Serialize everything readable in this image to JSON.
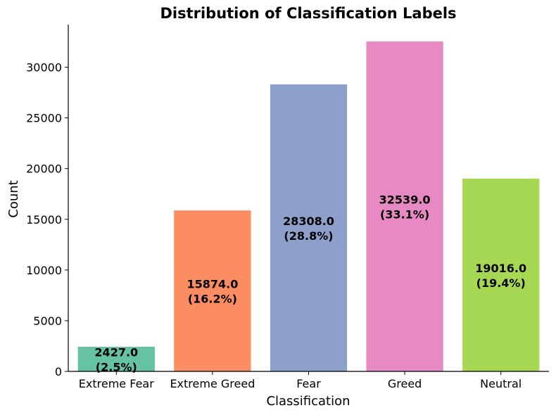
{
  "chart_data": {
    "type": "bar",
    "title": "Distribution of Classification Labels",
    "xlabel": "Classification",
    "ylabel": "Count",
    "categories": [
      "Extreme Fear",
      "Extreme Greed",
      "Fear",
      "Greed",
      "Neutral"
    ],
    "values": [
      2427,
      15874,
      28308,
      32539,
      19016
    ],
    "value_labels": [
      "2427.0",
      "15874.0",
      "28308.0",
      "32539.0",
      "19016.0"
    ],
    "percent_labels": [
      "(2.5%)",
      "(16.2%)",
      "(28.8%)",
      "(33.1%)",
      "(19.4%)"
    ],
    "colors": [
      "#66c2a5",
      "#fc8d62",
      "#8da0cb",
      "#e78ac3",
      "#a6d854"
    ],
    "ylim": [
      0,
      34200
    ],
    "yticks": [
      0,
      5000,
      10000,
      15000,
      20000,
      25000,
      30000
    ],
    "grid": false,
    "legend": "none"
  }
}
